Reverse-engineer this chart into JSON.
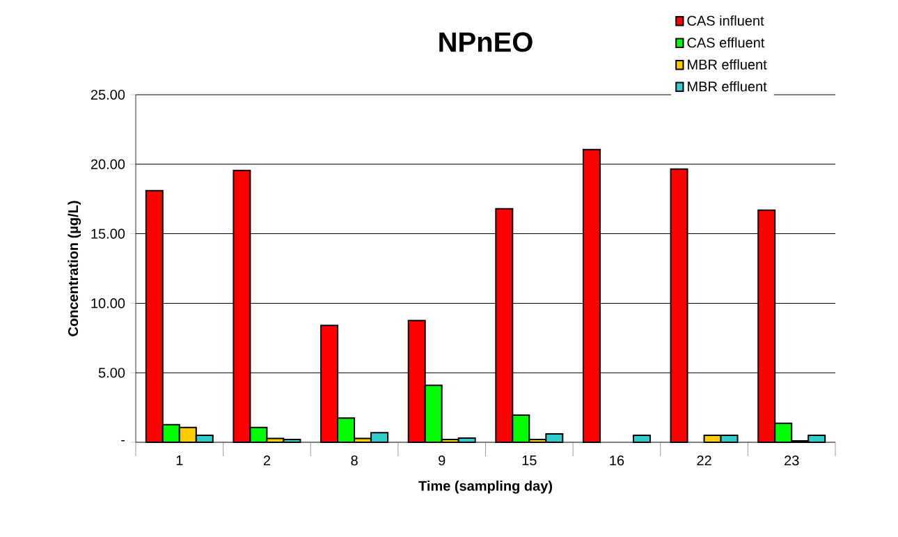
{
  "chart_data": {
    "type": "bar",
    "title": "NPnEO",
    "xlabel": "Time (sampling day)",
    "ylabel": "Concentration (µg/L)",
    "categories": [
      "1",
      "2",
      "8",
      "9",
      "15",
      "16",
      "22",
      "23"
    ],
    "series": [
      {
        "name": "CAS influent",
        "color": "#ff0000",
        "values": [
          18.1,
          19.55,
          8.4,
          8.75,
          16.8,
          21.05,
          19.65,
          16.7
        ]
      },
      {
        "name": "CAS effluent",
        "color": "#00ff00",
        "values": [
          1.27,
          1.07,
          1.74,
          4.1,
          1.95,
          null,
          null,
          1.37
        ]
      },
      {
        "name": "MBR effluent",
        "color": "#ffcc00",
        "values": [
          1.07,
          0.28,
          0.28,
          0.2,
          0.2,
          null,
          0.5,
          0.1
        ]
      },
      {
        "name": "MBR effluent",
        "color": "#33cccc",
        "values": [
          0.5,
          0.2,
          0.69,
          0.3,
          0.6,
          0.5,
          0.5,
          0.5
        ]
      }
    ],
    "ylim": [
      0,
      25
    ],
    "yticks": [
      {
        "value": 0,
        "label": "-"
      },
      {
        "value": 5,
        "label": "5.00"
      },
      {
        "value": 10,
        "label": "10.00"
      },
      {
        "value": 15,
        "label": "15.00"
      },
      {
        "value": 20,
        "label": "20.00"
      },
      {
        "value": 25,
        "label": "25.00"
      }
    ],
    "grid": "y",
    "legend": "top right"
  }
}
